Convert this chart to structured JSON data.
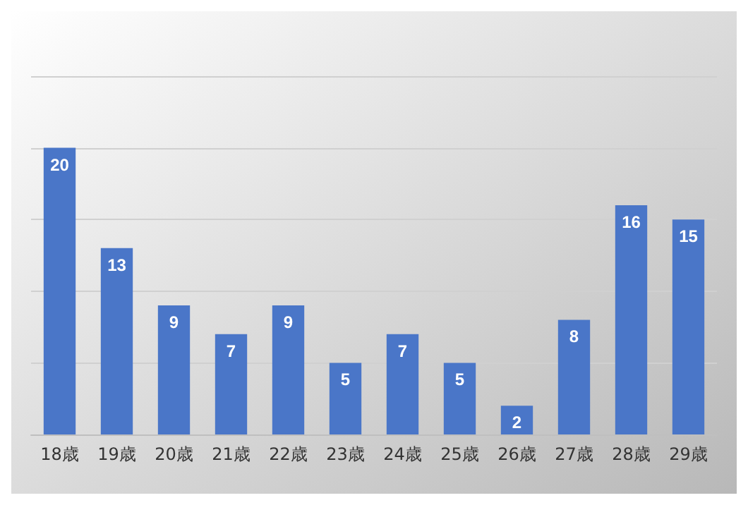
{
  "chart_data": {
    "type": "bar",
    "categories": [
      "18歳",
      "19歳",
      "20歳",
      "21歳",
      "22歳",
      "23歳",
      "24歳",
      "25歳",
      "26歳",
      "27歳",
      "28歳",
      "29歳"
    ],
    "values": [
      20,
      13,
      9,
      7,
      9,
      5,
      7,
      5,
      2,
      8,
      16,
      15
    ],
    "color": "#4a76c8",
    "ylim": [
      0,
      25
    ],
    "yticks": [
      {
        "value": 0,
        "label": null
      },
      {
        "value": 5,
        "label": null
      },
      {
        "value": 10,
        "label": null
      },
      {
        "value": 15,
        "label": null
      },
      {
        "value": 20,
        "label": null
      },
      {
        "value": 25,
        "label": null
      }
    ],
    "grid": "y",
    "tick_labels": "x",
    "data_labels": true
  }
}
